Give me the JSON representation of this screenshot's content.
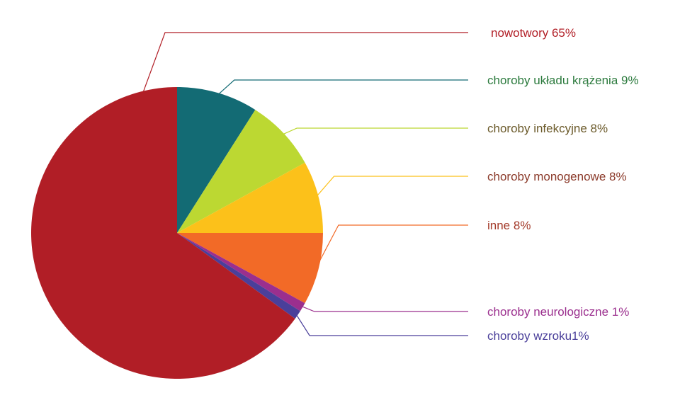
{
  "chart_data": {
    "type": "pie",
    "title": "",
    "start_angle_deg": 0,
    "direction": "clockwise",
    "slices": [
      {
        "label": "choroby układu krążenia 9%",
        "value": 9,
        "color": "#136b74",
        "label_color": "#2b7a3d"
      },
      {
        "label": "choroby infekcyjne 8%",
        "value": 8,
        "color": "#bcd832",
        "label_color": "#6b5a2a"
      },
      {
        "label": "choroby monogenowe 8%",
        "value": 8,
        "color": "#fcc11a",
        "label_color": "#8b3a2a"
      },
      {
        "label": "inne 8%",
        "value": 8,
        "color": "#f26a27",
        "label_color": "#a33a2a"
      },
      {
        "label": "choroby neurologiczne 1%",
        "value": 1,
        "color": "#9b2f8e",
        "label_color": "#9b2f8e"
      },
      {
        "label": "choroby wzroku1%",
        "value": 1,
        "color": "#4a3f9a",
        "label_color": "#4a3f9a"
      },
      {
        "label": "nowotwory 65%",
        "value": 65,
        "color": "#b11e26",
        "label_color": "#b11e26"
      }
    ]
  }
}
